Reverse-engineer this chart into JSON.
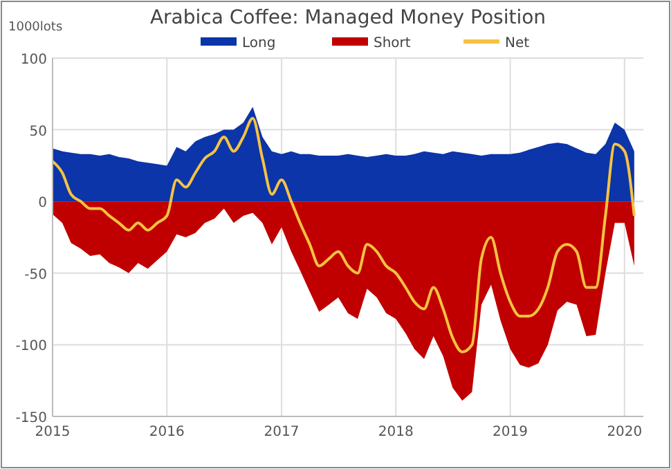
{
  "chart_data": {
    "type": "area",
    "title": "Arabica Coffee: Managed Money Position",
    "ylabel": "1000lots",
    "x": [
      "2015-01",
      "2015-02",
      "2015-03",
      "2015-04",
      "2015-05",
      "2015-06",
      "2015-07",
      "2015-08",
      "2015-09",
      "2015-10",
      "2015-11",
      "2015-12",
      "2016-01",
      "2016-02",
      "2016-03",
      "2016-04",
      "2016-05",
      "2016-06",
      "2016-07",
      "2016-08",
      "2016-09",
      "2016-10",
      "2016-11",
      "2016-12",
      "2017-01",
      "2017-02",
      "2017-03",
      "2017-04",
      "2017-05",
      "2017-06",
      "2017-07",
      "2017-08",
      "2017-09",
      "2017-10",
      "2017-11",
      "2017-12",
      "2018-01",
      "2018-02",
      "2018-03",
      "2018-04",
      "2018-05",
      "2018-06",
      "2018-07",
      "2018-08",
      "2018-09",
      "2018-10",
      "2018-11",
      "2018-12",
      "2019-01",
      "2019-02",
      "2019-03",
      "2019-04",
      "2019-05",
      "2019-06",
      "2019-07",
      "2019-08",
      "2019-09",
      "2019-10",
      "2019-11",
      "2019-12",
      "2020-01",
      "2020-02"
    ],
    "series": [
      {
        "name": "Long",
        "color": "#0b35a8",
        "values": [
          37,
          35,
          34,
          33,
          33,
          32,
          33,
          31,
          30,
          28,
          27,
          26,
          25,
          38,
          35,
          42,
          45,
          47,
          50,
          50,
          55,
          66,
          45,
          35,
          33,
          35,
          33,
          33,
          32,
          32,
          32,
          33,
          32,
          31,
          32,
          33,
          32,
          32,
          33,
          35,
          34,
          33,
          35,
          34,
          33,
          32,
          33,
          33,
          33,
          34,
          36,
          38,
          40,
          41,
          40,
          37,
          34,
          33,
          40,
          55,
          50,
          35
        ]
      },
      {
        "name": "Short",
        "color": "#c00000",
        "values": [
          -9,
          -15,
          -29,
          -33,
          -38,
          -37,
          -43,
          -46,
          -50,
          -43,
          -47,
          -41,
          -35,
          -23,
          -25,
          -22,
          -15,
          -12,
          -5,
          -15,
          -10,
          -8,
          -15,
          -30,
          -18,
          -35,
          -48,
          -63,
          -77,
          -72,
          -67,
          -78,
          -82,
          -61,
          -67,
          -78,
          -82,
          -92,
          -103,
          -110,
          -94,
          -108,
          -130,
          -139,
          -133,
          -72,
          -58,
          -83,
          -103,
          -114,
          -116,
          -113,
          -100,
          -76,
          -70,
          -72,
          -94,
          -93,
          -50,
          -15,
          -15,
          -45
        ]
      },
      {
        "name": "Net",
        "type": "line",
        "color": "#f5c242",
        "values": [
          28,
          20,
          5,
          0,
          -5,
          -5,
          -10,
          -15,
          -20,
          -15,
          -20,
          -15,
          -10,
          15,
          10,
          20,
          30,
          35,
          45,
          35,
          45,
          58,
          30,
          5,
          15,
          0,
          -15,
          -30,
          -45,
          -40,
          -35,
          -45,
          -50,
          -30,
          -35,
          -45,
          -50,
          -60,
          -70,
          -75,
          -60,
          -75,
          -95,
          -105,
          -100,
          -40,
          -25,
          -50,
          -70,
          -80,
          -80,
          -75,
          -60,
          -35,
          -30,
          -35,
          -60,
          -60,
          -10,
          40,
          35,
          -10
        ]
      }
    ],
    "xlim": [
      "2015-01",
      "2020-03"
    ],
    "xticks": [
      {
        "value": "2015-01",
        "label": "2015"
      },
      {
        "value": "2016-01",
        "label": "2016"
      },
      {
        "value": "2017-01",
        "label": "2017"
      },
      {
        "value": "2018-01",
        "label": "2018"
      },
      {
        "value": "2019-01",
        "label": "2019"
      },
      {
        "value": "2020-01",
        "label": "2020"
      }
    ],
    "ylim": [
      -150,
      100
    ],
    "yticks": [
      -150,
      -100,
      -50,
      0,
      50,
      100
    ],
    "grid": true,
    "legend": "top"
  }
}
